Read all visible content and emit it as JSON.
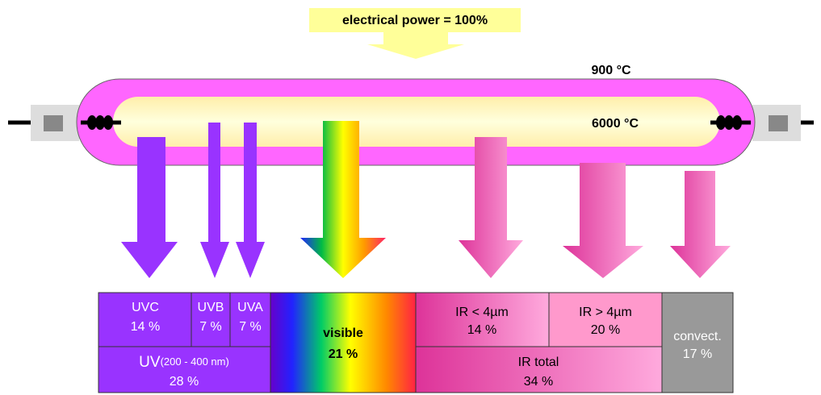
{
  "header": {
    "title": "electrical power = 100%"
  },
  "lamp": {
    "outer_temp": "900 °C",
    "inner_temp": "6000 °C"
  },
  "table": {
    "uvc": {
      "label": "UVC",
      "share": "14 %"
    },
    "uvb": {
      "label": "UVB",
      "share": "7 %"
    },
    "uva": {
      "label": "UVA",
      "share": "7 %"
    },
    "uv": {
      "label": "UV",
      "range": "(200 - 400 nm)",
      "share": "28 %"
    },
    "visible": {
      "label": "visible",
      "share": "21 %"
    },
    "ir_short": {
      "label": "IR < 4µm",
      "share": "14 %"
    },
    "ir_long": {
      "label": "IR > 4µm",
      "share": "20 %"
    },
    "ir_total": {
      "label": "IR total",
      "share": "34 %"
    },
    "convection": {
      "label": "convect.",
      "share": "17 %"
    }
  }
}
